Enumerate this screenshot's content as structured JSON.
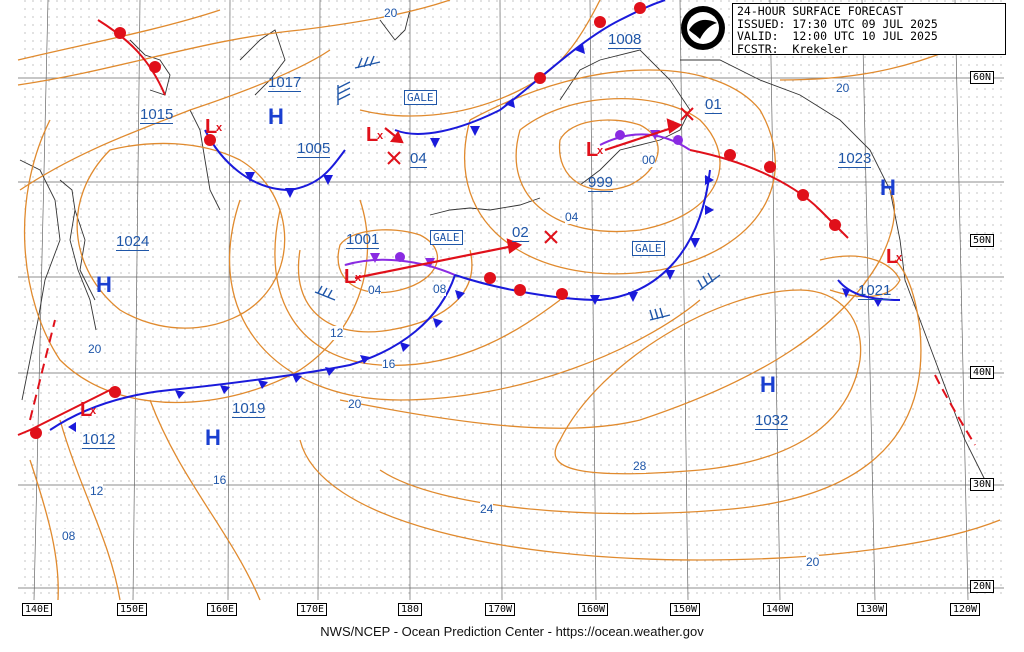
{
  "header": {
    "title": "24-HOUR SURFACE FORECAST",
    "issued_label": "ISSUED:",
    "issued": "17:30 UTC 09 JUL 2025",
    "valid_label": "VALID:",
    "valid": "12:00 UTC 10 JUL 2025",
    "fcstr_label": "FCSTR:",
    "fcstr": "Krekeler"
  },
  "logo": {
    "name": "NOAA",
    "icon": "noaa-logo-icon"
  },
  "footer": "NWS/NCEP - Ocean Prediction Center - https://ocean.weather.gov",
  "colors": {
    "isobar": "#e08a2e",
    "cold_front": "#1a1adb",
    "warm_front": "#e0101a",
    "occluded_front": "#8a2be2",
    "high": "#1a3fd0",
    "low": "#e0101a",
    "label_blue": "#1f56a8",
    "grid": "#555555"
  },
  "longitude_labels": [
    "140E",
    "150E",
    "160E",
    "170E",
    "180",
    "170W",
    "160W",
    "150W",
    "140W",
    "130W",
    "120W"
  ],
  "latitude_labels": [
    "60N",
    "50N",
    "40N",
    "30N",
    "20N"
  ],
  "pressure_centers": [
    {
      "type": "H",
      "value": "1017"
    },
    {
      "type": "L",
      "value": "1015"
    },
    {
      "type": "L",
      "value": "1005"
    },
    {
      "type": "L",
      "value": "1001"
    },
    {
      "type": "H",
      "value": "1024"
    },
    {
      "type": "H",
      "value": "1019"
    },
    {
      "type": "L",
      "value": "1012"
    },
    {
      "type": "L",
      "value": "999"
    },
    {
      "type": "L",
      "value": "1008"
    },
    {
      "type": "H",
      "value": "1023"
    },
    {
      "type": "L",
      "value": "1021"
    },
    {
      "type": "H",
      "value": "1032"
    }
  ],
  "forecast_positions": [
    "04",
    "02",
    "01"
  ],
  "isobar_labels": [
    "20",
    "00",
    "04",
    "04",
    "08",
    "12",
    "16",
    "20",
    "24",
    "28",
    "20",
    "16",
    "12",
    "08",
    "20"
  ],
  "warnings": [
    "GALE",
    "GALE",
    "GALE"
  ]
}
